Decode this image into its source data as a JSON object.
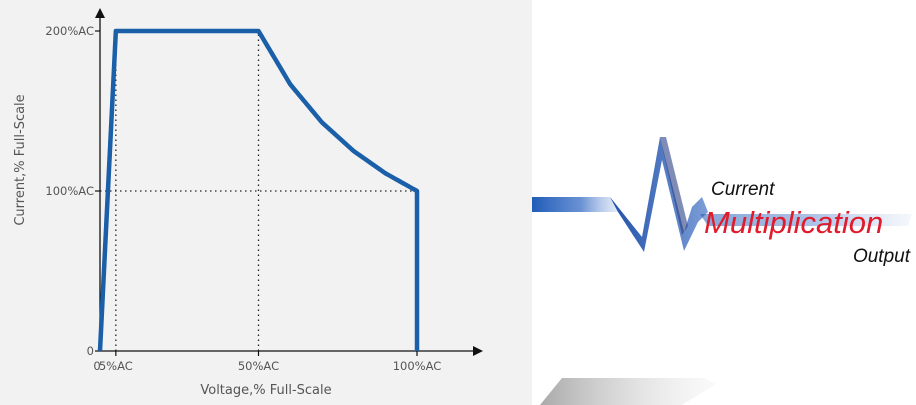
{
  "chart_data": {
    "type": "line",
    "title": "",
    "xlabel": "Voltage,% Full-Scale",
    "ylabel": "Current,% Full-Scale",
    "x_tick_labels": [
      "0",
      "5%AC",
      "50%AC",
      "100%AC"
    ],
    "x_tick_values": [
      0,
      5,
      50,
      100
    ],
    "y_tick_labels": [
      "0",
      "100%AC",
      "200%AC"
    ],
    "y_tick_values": [
      0,
      100,
      200
    ],
    "xlim": [
      0,
      100
    ],
    "ylim": [
      0,
      200
    ],
    "grid": false,
    "series": [
      {
        "color": "#1a5fa8",
        "points": [
          {
            "x": 0,
            "y": 0
          },
          {
            "x": 5,
            "y": 200
          },
          {
            "x": 50,
            "y": 200
          },
          {
            "x": 60,
            "y": 166.7
          },
          {
            "x": 70,
            "y": 142.9
          },
          {
            "x": 80,
            "y": 125
          },
          {
            "x": 90,
            "y": 111.1
          },
          {
            "x": 100,
            "y": 100
          },
          {
            "x": 100,
            "y": 0
          }
        ]
      }
    ],
    "guides": [
      {
        "from": {
          "x": 5,
          "y": 0
        },
        "to": {
          "x": 5,
          "y": 200
        }
      },
      {
        "from": {
          "x": 50,
          "y": 0
        },
        "to": {
          "x": 50,
          "y": 200
        }
      },
      {
        "from": {
          "x": 0,
          "y": 100
        },
        "to": {
          "x": 100,
          "y": 100
        }
      }
    ]
  },
  "logo": {
    "line1": "Current",
    "line2": "Multiplication",
    "line3": "Output",
    "accent_color": "#e01b2b",
    "wave_color": "#1f5cb8"
  }
}
